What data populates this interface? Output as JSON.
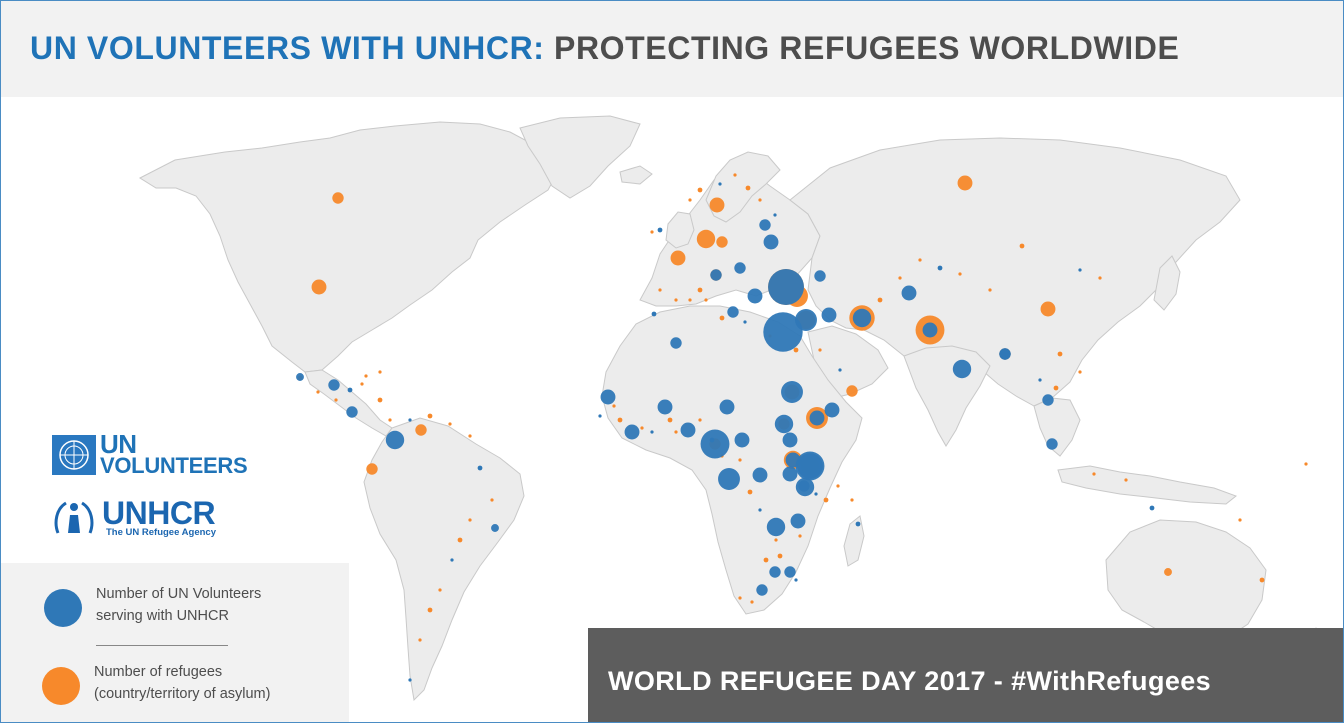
{
  "header": {
    "title_part1": "UN VOLUNTEERS WITH UNHCR:",
    "title_part2": " PROTECTING REFUGEES WORLDWIDE"
  },
  "colors": {
    "volunteer": "#2f78b7",
    "refugee": "#f7892b",
    "land": "#ececec",
    "border": "#c6c6c6",
    "title_blue": "#1f73b7",
    "title_grey": "#4d4d4d",
    "footer_bg": "#5d5d5d"
  },
  "logos": {
    "unv_line1": "UN",
    "unv_line2": "VOLUNTEERS",
    "unhcr_name": "UNHCR",
    "unhcr_tagline": "The UN Refugee Agency"
  },
  "legend": {
    "volunteers_line1": "Number of UN Volunteers",
    "volunteers_line2": "serving with UNHCR",
    "refugees_line1": "Number of refugees",
    "refugees_line2": "(country/territory of asylum)"
  },
  "footer": {
    "text": "WORLD REFUGEE DAY 2017 - #WithRefugees"
  },
  "map_markers": {
    "note": "relative bubble size 1–10 per country location",
    "volunteers": [
      {
        "place": "Turkey",
        "size": 9
      },
      {
        "place": "Egypt",
        "size": 10
      },
      {
        "place": "Jordan",
        "size": 5
      },
      {
        "place": "Iraq",
        "size": 3
      },
      {
        "place": "Iran",
        "size": 4
      },
      {
        "place": "Afghanistan",
        "size": 3
      },
      {
        "place": "Pakistan",
        "size": 3
      },
      {
        "place": "India",
        "size": 4
      },
      {
        "place": "Myanmar",
        "size": 2
      },
      {
        "place": "Bangladesh",
        "size": 2
      },
      {
        "place": "Thailand",
        "size": 2
      },
      {
        "place": "Malaysia",
        "size": 2
      },
      {
        "place": "Ukraine",
        "size": 3
      },
      {
        "place": "Belarus",
        "size": 2
      },
      {
        "place": "Georgia",
        "size": 2
      },
      {
        "place": "Serbia",
        "size": 2
      },
      {
        "place": "Greece",
        "size": 3
      },
      {
        "place": "Italy",
        "size": 2
      },
      {
        "place": "Morocco",
        "size": 2
      },
      {
        "place": "Libya",
        "size": 2
      },
      {
        "place": "Senegal",
        "size": 3
      },
      {
        "place": "Guinea",
        "size": 3
      },
      {
        "place": "Mali",
        "size": 3
      },
      {
        "place": "Burkina Faso",
        "size": 3
      },
      {
        "place": "Niger",
        "size": 3
      },
      {
        "place": "Nigeria",
        "size": 3
      },
      {
        "place": "Chad",
        "size": 5
      },
      {
        "place": "Sudan",
        "size": 4
      },
      {
        "place": "South Sudan",
        "size": 3
      },
      {
        "place": "Ethiopia",
        "size": 3
      },
      {
        "place": "Somalia",
        "size": 3
      },
      {
        "place": "Cameroon",
        "size": 7
      },
      {
        "place": "Central African Republic",
        "size": 3
      },
      {
        "place": "DR Congo",
        "size": 7
      },
      {
        "place": "Uganda",
        "size": 3
      },
      {
        "place": "Kenya",
        "size": 6
      },
      {
        "place": "Rwanda",
        "size": 3
      },
      {
        "place": "Burundi",
        "size": 2
      },
      {
        "place": "Tanzania",
        "size": 4
      },
      {
        "place": "Congo",
        "size": 5
      },
      {
        "place": "Zambia",
        "size": 4
      },
      {
        "place": "Malawi",
        "size": 3
      },
      {
        "place": "Zimbabwe",
        "size": 2
      },
      {
        "place": "Mozambique",
        "size": 2
      },
      {
        "place": "South Africa",
        "size": 2
      },
      {
        "place": "Colombia",
        "size": 4
      },
      {
        "place": "Costa Rica",
        "size": 2
      },
      {
        "place": "Honduras",
        "size": 2
      },
      {
        "place": "Brazil",
        "size": 1
      },
      {
        "place": "Mexico",
        "size": 1
      }
    ],
    "refugees": [
      {
        "place": "Turkey",
        "size": 9
      },
      {
        "place": "Lebanon",
        "size": 5
      },
      {
        "place": "Jordan",
        "size": 4
      },
      {
        "place": "Pakistan",
        "size": 7
      },
      {
        "place": "Iran",
        "size": 6
      },
      {
        "place": "Ethiopia",
        "size": 5
      },
      {
        "place": "Kenya",
        "size": 4
      },
      {
        "place": "Uganda",
        "size": 4
      },
      {
        "place": "Germany",
        "size": 4
      },
      {
        "place": "France",
        "size": 3
      },
      {
        "place": "Sweden",
        "size": 3
      },
      {
        "place": "Russia",
        "size": 3
      },
      {
        "place": "USA",
        "size": 3
      },
      {
        "place": "Canada",
        "size": 2
      },
      {
        "place": "China",
        "size": 3
      },
      {
        "place": "Bangladesh",
        "size": 2
      },
      {
        "place": "Chad",
        "size": 3
      },
      {
        "place": "Sudan",
        "size": 2
      },
      {
        "place": "Cameroon",
        "size": 2
      },
      {
        "place": "DR Congo",
        "size": 3
      },
      {
        "place": "Yemen",
        "size": 2
      },
      {
        "place": "Venezuela",
        "size": 2
      },
      {
        "place": "Ecuador",
        "size": 2
      },
      {
        "place": "Australia",
        "size": 1
      },
      {
        "place": "Italy",
        "size": 2
      },
      {
        "place": "Austria",
        "size": 2
      }
    ]
  }
}
